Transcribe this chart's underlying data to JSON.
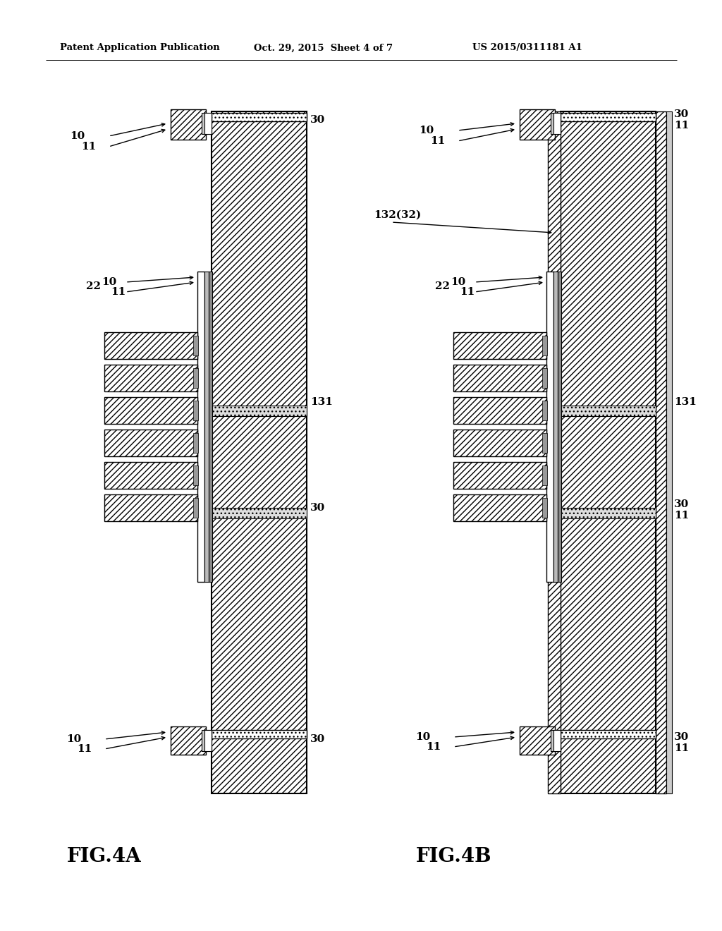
{
  "bg_color": "#ffffff",
  "header_left": "Patent Application Publication",
  "header_mid": "Oct. 29, 2015  Sheet 4 of 7",
  "header_right": "US 2015/0311181 A1",
  "fig4a_label": "FIG.4A",
  "fig4b_label": "FIG.4B",
  "hatch_diag": "////",
  "hatch_cross": "xxxx"
}
